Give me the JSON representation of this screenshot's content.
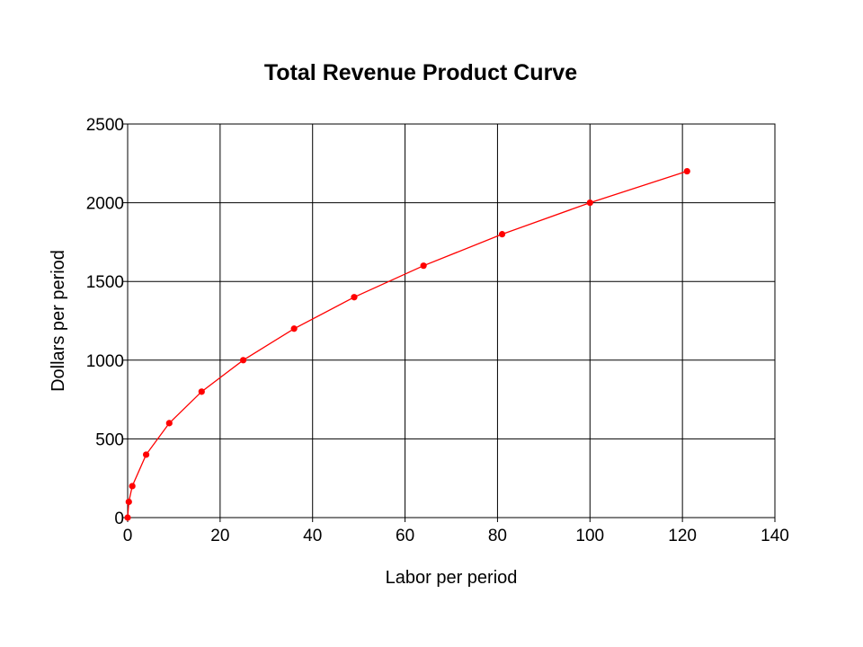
{
  "chart_data": {
    "type": "line",
    "title": "Total Revenue Product Curve",
    "xlabel": "Labor per period",
    "ylabel": "Dollars per period",
    "xlim": [
      0,
      140
    ],
    "ylim": [
      0,
      2500
    ],
    "x_ticks": [
      0,
      20,
      40,
      60,
      80,
      100,
      120,
      140
    ],
    "y_ticks": [
      0,
      500,
      1000,
      1500,
      2000,
      2500
    ],
    "grid": true,
    "series": [
      {
        "color": "#ff0000",
        "x": [
          0,
          0.25,
          1,
          4,
          9,
          16,
          25,
          36,
          49,
          64,
          81,
          100,
          121
        ],
        "y": [
          0,
          100,
          200,
          400,
          600,
          800,
          1000,
          1200,
          1400,
          1600,
          1800,
          2000,
          2200
        ]
      }
    ]
  }
}
